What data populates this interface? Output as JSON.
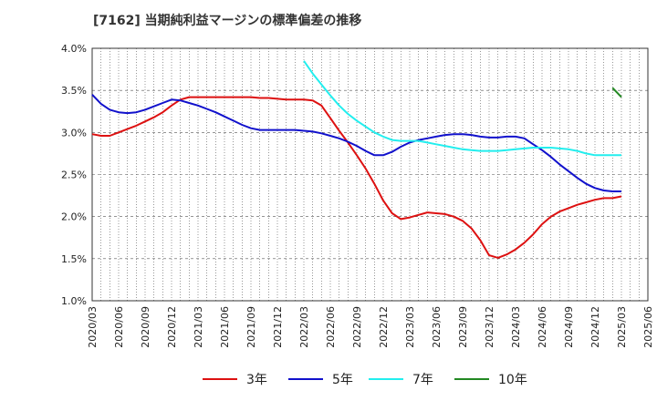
{
  "title": "[7162]  当期純利益マージンの標準偏差の推移",
  "chart_data": {
    "type": "line",
    "title": "[7162]  当期純利益マージンの標準偏差の推移",
    "xlabel": "",
    "ylabel": "",
    "ylim": [
      1.0,
      4.0
    ],
    "yticks": [
      "1.0%",
      "1.5%",
      "2.0%",
      "2.5%",
      "3.0%",
      "3.5%",
      "4.0%"
    ],
    "grid": true,
    "legend_position": "bottom",
    "x_ticks": [
      "2020/03",
      "2020/06",
      "2020/09",
      "2020/12",
      "2021/03",
      "2021/06",
      "2021/09",
      "2021/12",
      "2022/03",
      "2022/06",
      "2022/09",
      "2022/12",
      "2023/03",
      "2023/06",
      "2023/09",
      "2023/12",
      "2024/03",
      "2024/06",
      "2024/09",
      "2024/12",
      "2025/03",
      "2025/06"
    ],
    "x": [
      "2020/03",
      "2020/04",
      "2020/05",
      "2020/06",
      "2020/07",
      "2020/08",
      "2020/09",
      "2020/10",
      "2020/11",
      "2020/12",
      "2021/01",
      "2021/02",
      "2021/03",
      "2021/04",
      "2021/05",
      "2021/06",
      "2021/07",
      "2021/08",
      "2021/09",
      "2021/10",
      "2021/11",
      "2021/12",
      "2022/01",
      "2022/02",
      "2022/03",
      "2022/04",
      "2022/05",
      "2022/06",
      "2022/07",
      "2022/08",
      "2022/09",
      "2022/10",
      "2022/11",
      "2022/12",
      "2023/01",
      "2023/02",
      "2023/03",
      "2023/04",
      "2023/05",
      "2023/06",
      "2023/07",
      "2023/08",
      "2023/09",
      "2023/10",
      "2023/11",
      "2023/12",
      "2024/01",
      "2024/02",
      "2024/03",
      "2024/04",
      "2024/05",
      "2024/06",
      "2024/07",
      "2024/08",
      "2024/09",
      "2024/10",
      "2024/11",
      "2024/12",
      "2025/01",
      "2025/02",
      "2025/03"
    ],
    "series": [
      {
        "name": "3年",
        "color": "#dd1111",
        "values": [
          2.98,
          2.96,
          2.96,
          3.0,
          3.04,
          3.08,
          3.13,
          3.18,
          3.24,
          3.32,
          3.39,
          3.42,
          3.42,
          3.42,
          3.42,
          3.42,
          3.42,
          3.42,
          3.42,
          3.41,
          3.41,
          3.4,
          3.39,
          3.39,
          3.39,
          3.38,
          3.32,
          3.17,
          3.02,
          2.88,
          2.73,
          2.57,
          2.39,
          2.19,
          2.04,
          1.97,
          1.99,
          2.02,
          2.05,
          2.04,
          2.03,
          2.0,
          1.95,
          1.86,
          1.72,
          1.54,
          1.51,
          1.55,
          1.61,
          1.69,
          1.79,
          1.91,
          2.0,
          2.06,
          2.1,
          2.14,
          2.17,
          2.2,
          2.22,
          2.22,
          2.24
        ]
      },
      {
        "name": "5年",
        "color": "#1111cc",
        "values": [
          3.45,
          3.34,
          3.27,
          3.24,
          3.23,
          3.24,
          3.27,
          3.31,
          3.35,
          3.39,
          3.38,
          3.35,
          3.32,
          3.28,
          3.24,
          3.19,
          3.14,
          3.09,
          3.05,
          3.03,
          3.03,
          3.03,
          3.03,
          3.03,
          3.02,
          3.01,
          2.99,
          2.96,
          2.93,
          2.89,
          2.84,
          2.78,
          2.73,
          2.73,
          2.77,
          2.83,
          2.88,
          2.91,
          2.93,
          2.95,
          2.97,
          2.98,
          2.98,
          2.97,
          2.95,
          2.94,
          2.94,
          2.95,
          2.95,
          2.93,
          2.86,
          2.79,
          2.71,
          2.62,
          2.54,
          2.46,
          2.39,
          2.34,
          2.31,
          2.3,
          2.3
        ]
      },
      {
        "name": "7年",
        "color": "#22eeee",
        "values": [
          null,
          null,
          null,
          null,
          null,
          null,
          null,
          null,
          null,
          null,
          null,
          null,
          null,
          null,
          null,
          null,
          null,
          null,
          null,
          null,
          null,
          null,
          null,
          null,
          3.85,
          3.7,
          3.57,
          3.44,
          3.32,
          3.22,
          3.14,
          3.07,
          3.0,
          2.95,
          2.91,
          2.9,
          2.9,
          2.9,
          2.88,
          2.86,
          2.84,
          2.82,
          2.8,
          2.79,
          2.78,
          2.78,
          2.78,
          2.79,
          2.8,
          2.81,
          2.82,
          2.82,
          2.82,
          2.81,
          2.8,
          2.78,
          2.75,
          2.73,
          2.73,
          2.73,
          2.73
        ]
      },
      {
        "name": "10年",
        "color": "#228822",
        "values": [
          null,
          null,
          null,
          null,
          null,
          null,
          null,
          null,
          null,
          null,
          null,
          null,
          null,
          null,
          null,
          null,
          null,
          null,
          null,
          null,
          null,
          null,
          null,
          null,
          null,
          null,
          null,
          null,
          null,
          null,
          null,
          null,
          null,
          null,
          null,
          null,
          null,
          null,
          null,
          null,
          null,
          null,
          null,
          null,
          null,
          null,
          null,
          null,
          null,
          null,
          null,
          null,
          null,
          null,
          null,
          null,
          null,
          null,
          null,
          3.53,
          3.42
        ]
      }
    ]
  }
}
